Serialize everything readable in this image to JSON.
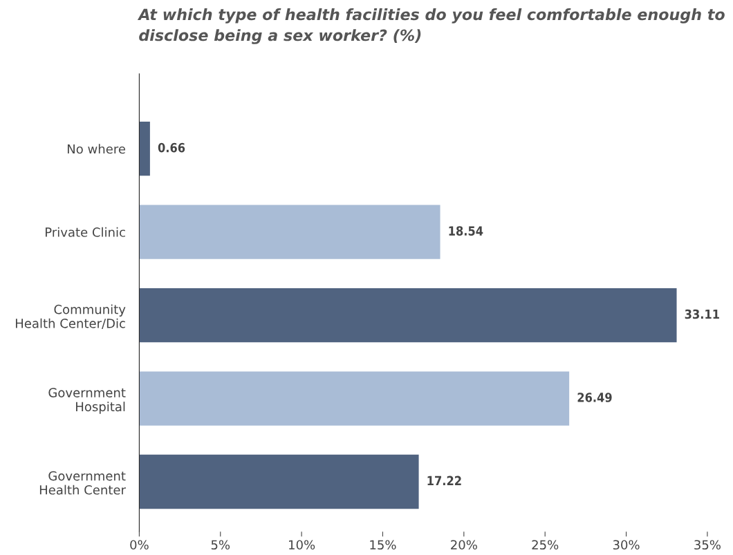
{
  "chart_data": {
    "type": "bar",
    "orientation": "horizontal",
    "title": "At which type of health facilities do you feel comfortable enough to disclose being a sex worker? (%)",
    "categories": [
      "No where",
      "Private Clinic",
      "Community\nHealth Center/Dic",
      "Government\nHospital",
      "Government\nHealth Center"
    ],
    "values": [
      0.66,
      18.54,
      33.11,
      26.49,
      17.22
    ],
    "colors": [
      "#506380",
      "#a9bcd6",
      "#506380",
      "#a9bcd6",
      "#506380"
    ],
    "xlim": [
      0,
      35
    ],
    "xticks": [
      {
        "value": 0,
        "label": "0%"
      },
      {
        "value": 5,
        "label": "5%"
      },
      {
        "value": 10,
        "label": "10%"
      },
      {
        "value": 15,
        "label": "15%"
      },
      {
        "value": 20,
        "label": "20%"
      },
      {
        "value": 25,
        "label": "25%"
      },
      {
        "value": 30,
        "label": "30%"
      },
      {
        "value": 35,
        "label": "35%"
      }
    ],
    "data_labels": true,
    "grid": false
  }
}
